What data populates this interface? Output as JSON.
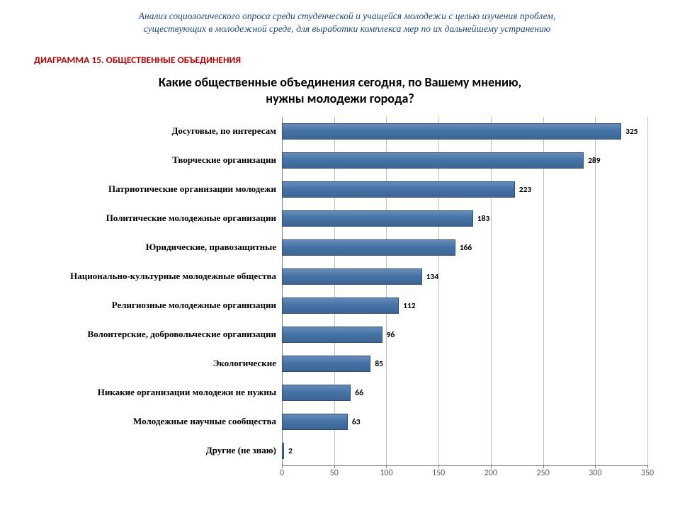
{
  "header": {
    "line1": "Анализ социологического опроса среди студенческой и учащейся молодежи с целью изучения проблем,",
    "line2": "существующих в молодежной среде, для выработки комплекса мер по их дальнейшему устранению",
    "color": "#1f497d",
    "font_style": "italic",
    "fontsize": 13.5
  },
  "diagram_label": {
    "text": "ДИАГРАММА 15. ОБЩЕСТВЕННЫЕ ОБЪЕДИНЕНИЯ",
    "color": "#c00000",
    "fontsize": 13.5,
    "font_weight": "bold"
  },
  "chart": {
    "type": "bar-horizontal",
    "title_line1": "Какие общественные объединения сегодня, по Вашему мнению,",
    "title_line2": "нужны молодежи города?",
    "title_fontsize": 18,
    "title_color": "#000000",
    "bar_fill": "#4573a7",
    "bar_border": "#2e507a",
    "background_color": "#ffffff",
    "grid_color": "#bfbfbf",
    "axis_color": "#808080",
    "value_label_color": "#000000",
    "value_label_fontsize": 11.5,
    "category_label_fontsize": 13,
    "x_axis": {
      "min": 0,
      "max": 350,
      "tick_step": 50,
      "ticks": [
        0,
        50,
        100,
        150,
        200,
        250,
        300,
        350
      ],
      "label_color": "#595959",
      "label_fontsize": 12
    },
    "categories": [
      {
        "label": "Досуговые, по интересам",
        "value": 325
      },
      {
        "label": "Творческие организации",
        "value": 289
      },
      {
        "label": "Патриотические организации молодежи",
        "value": 223
      },
      {
        "label": "Политические молодежные организации",
        "value": 183
      },
      {
        "label": "Юридические, правозащитные",
        "value": 166
      },
      {
        "label": "Национально-культурные молодежные общества",
        "value": 134
      },
      {
        "label": "Религиозные молодежные организации",
        "value": 112
      },
      {
        "label": "Волонтерские, добровольческие организации",
        "value": 96
      },
      {
        "label": "Экологические",
        "value": 85
      },
      {
        "label": "Никакие организации молодежи не нужны",
        "value": 66
      },
      {
        "label": "Молодежные научные сообщества",
        "value": 63
      },
      {
        "label": "Другие (не знаю)",
        "value": 2
      }
    ]
  }
}
